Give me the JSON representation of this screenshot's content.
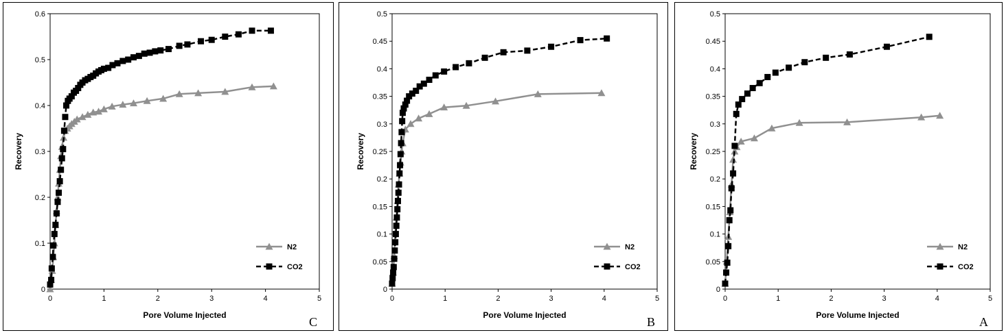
{
  "chart_data": [
    {
      "type": "line",
      "panel_label": "C",
      "xlabel": "Pore Volume Injected",
      "ylabel": "Recovery",
      "xlim": [
        0,
        5
      ],
      "ylim": [
        0,
        0.6
      ],
      "xticks": [
        "0",
        "1",
        "2",
        "3",
        "4",
        "5"
      ],
      "yticks": [
        "0",
        "0.1",
        "0.2",
        "0.3",
        "0.4",
        "0.5",
        "0.6"
      ],
      "ytick_values": [
        0,
        0.1,
        0.2,
        0.3,
        0.4,
        0.5,
        0.6
      ],
      "legend_position": "bottom-right",
      "series": [
        {
          "name": "N2",
          "color": "#909090",
          "marker": "triangle",
          "dash": "solid",
          "x": [
            0,
            0.02,
            0.04,
            0.06,
            0.08,
            0.1,
            0.12,
            0.14,
            0.16,
            0.18,
            0.2,
            0.22,
            0.25,
            0.28,
            0.32,
            0.36,
            0.4,
            0.45,
            0.5,
            0.6,
            0.7,
            0.8,
            0.9,
            1.0,
            1.15,
            1.35,
            1.55,
            1.8,
            2.1,
            2.4,
            2.75,
            3.25,
            3.75,
            4.15
          ],
          "y": [
            0,
            0.02,
            0.04,
            0.07,
            0.1,
            0.14,
            0.17,
            0.2,
            0.23,
            0.26,
            0.29,
            0.31,
            0.33,
            0.345,
            0.35,
            0.355,
            0.36,
            0.365,
            0.37,
            0.375,
            0.38,
            0.385,
            0.387,
            0.392,
            0.398,
            0.402,
            0.405,
            0.41,
            0.415,
            0.425,
            0.427,
            0.43,
            0.44,
            0.442
          ]
        },
        {
          "name": "CO2",
          "color": "#000000",
          "marker": "square",
          "dash": "dashed",
          "x": [
            0,
            0.02,
            0.03,
            0.05,
            0.06,
            0.08,
            0.1,
            0.12,
            0.14,
            0.16,
            0.18,
            0.2,
            0.22,
            0.24,
            0.26,
            0.28,
            0.3,
            0.33,
            0.36,
            0.4,
            0.44,
            0.48,
            0.52,
            0.56,
            0.6,
            0.65,
            0.7,
            0.75,
            0.8,
            0.85,
            0.9,
            0.95,
            1.0,
            1.08,
            1.16,
            1.25,
            1.35,
            1.45,
            1.55,
            1.65,
            1.75,
            1.85,
            1.95,
            2.05,
            2.2,
            2.4,
            2.55,
            2.8,
            3.0,
            3.25,
            3.5,
            3.75,
            4.1
          ],
          "y": [
            0.01,
            0.02,
            0.045,
            0.07,
            0.095,
            0.12,
            0.14,
            0.165,
            0.19,
            0.21,
            0.235,
            0.26,
            0.285,
            0.305,
            0.345,
            0.375,
            0.4,
            0.41,
            0.415,
            0.42,
            0.428,
            0.432,
            0.438,
            0.445,
            0.45,
            0.455,
            0.458,
            0.462,
            0.465,
            0.47,
            0.474,
            0.477,
            0.48,
            0.482,
            0.488,
            0.492,
            0.497,
            0.5,
            0.505,
            0.508,
            0.513,
            0.515,
            0.518,
            0.52,
            0.523,
            0.53,
            0.533,
            0.54,
            0.543,
            0.55,
            0.555,
            0.563,
            0.563
          ]
        }
      ],
      "legend": [
        {
          "label": "N2"
        },
        {
          "label": "CO2"
        }
      ]
    },
    {
      "type": "line",
      "panel_label": "B",
      "xlabel": "Pore Volume Injected",
      "ylabel": "Recovery",
      "xlim": [
        0,
        5
      ],
      "ylim": [
        0,
        0.5
      ],
      "xticks": [
        "0",
        "1",
        "2",
        "3",
        "4",
        "5"
      ],
      "yticks": [
        "0",
        "0.05",
        "0.1",
        "0.15",
        "0.2",
        "0.25",
        "0.3",
        "0.35",
        "0.4",
        "0.45",
        "0.5"
      ],
      "ytick_values": [
        0,
        0.05,
        0.1,
        0.15,
        0.2,
        0.25,
        0.3,
        0.35,
        0.4,
        0.45,
        0.5
      ],
      "legend_position": "bottom-right",
      "series": [
        {
          "name": "N2",
          "color": "#909090",
          "marker": "triangle",
          "dash": "solid",
          "x": [
            0,
            0.02,
            0.04,
            0.06,
            0.08,
            0.1,
            0.12,
            0.14,
            0.16,
            0.18,
            0.2,
            0.25,
            0.35,
            0.5,
            0.7,
            0.98,
            1.4,
            1.95,
            2.75,
            3.95
          ],
          "y": [
            0.01,
            0.03,
            0.06,
            0.1,
            0.13,
            0.16,
            0.19,
            0.21,
            0.23,
            0.25,
            0.265,
            0.29,
            0.3,
            0.31,
            0.318,
            0.33,
            0.333,
            0.341,
            0.354,
            0.356
          ]
        },
        {
          "name": "CO2",
          "color": "#000000",
          "marker": "square",
          "dash": "dashed",
          "x": [
            0,
            0.01,
            0.02,
            0.03,
            0.04,
            0.05,
            0.06,
            0.07,
            0.08,
            0.09,
            0.1,
            0.11,
            0.12,
            0.13,
            0.14,
            0.15,
            0.16,
            0.17,
            0.18,
            0.19,
            0.2,
            0.22,
            0.25,
            0.28,
            0.32,
            0.38,
            0.45,
            0.52,
            0.6,
            0.7,
            0.82,
            0.98,
            1.2,
            1.45,
            1.75,
            2.1,
            2.55,
            3.0,
            3.55,
            4.05
          ],
          "y": [
            0.01,
            0.02,
            0.03,
            0.04,
            0.055,
            0.07,
            0.085,
            0.1,
            0.115,
            0.13,
            0.145,
            0.16,
            0.175,
            0.19,
            0.21,
            0.225,
            0.245,
            0.265,
            0.285,
            0.305,
            0.32,
            0.328,
            0.335,
            0.342,
            0.35,
            0.355,
            0.36,
            0.368,
            0.373,
            0.38,
            0.388,
            0.395,
            0.403,
            0.41,
            0.42,
            0.43,
            0.433,
            0.44,
            0.452,
            0.455
          ]
        }
      ],
      "legend": [
        {
          "label": "N2"
        },
        {
          "label": "CO2"
        }
      ]
    },
    {
      "type": "line",
      "panel_label": "A",
      "xlabel": "Pore Volume Injected",
      "ylabel": "Recovery",
      "xlim": [
        0,
        5
      ],
      "ylim": [
        0,
        0.5
      ],
      "xticks": [
        "0",
        "1",
        "2",
        "3",
        "4",
        "5"
      ],
      "yticks": [
        "0",
        "0.05",
        "0.1",
        "0.15",
        "0.2",
        "0.25",
        "0.3",
        "0.35",
        "0.4",
        "0.45",
        "0.5"
      ],
      "ytick_values": [
        0,
        0.05,
        0.1,
        0.15,
        0.2,
        0.25,
        0.3,
        0.35,
        0.4,
        0.45,
        0.5
      ],
      "legend_position": "bottom-right",
      "series": [
        {
          "name": "N2",
          "color": "#909090",
          "marker": "triangle",
          "dash": "solid",
          "x": [
            0,
            0.03,
            0.06,
            0.09,
            0.12,
            0.15,
            0.18,
            0.22,
            0.3,
            0.55,
            0.88,
            1.4,
            2.3,
            3.7,
            4.05
          ],
          "y": [
            0.01,
            0.05,
            0.095,
            0.14,
            0.19,
            0.235,
            0.25,
            0.258,
            0.268,
            0.274,
            0.292,
            0.302,
            0.303,
            0.312,
            0.315
          ]
        },
        {
          "name": "CO2",
          "color": "#000000",
          "marker": "square",
          "dash": "dashed",
          "x": [
            0,
            0.02,
            0.04,
            0.06,
            0.08,
            0.1,
            0.12,
            0.15,
            0.18,
            0.21,
            0.25,
            0.32,
            0.42,
            0.52,
            0.65,
            0.8,
            0.95,
            1.2,
            1.5,
            1.9,
            2.35,
            3.05,
            3.85
          ],
          "y": [
            0.01,
            0.03,
            0.048,
            0.078,
            0.125,
            0.143,
            0.183,
            0.21,
            0.26,
            0.318,
            0.335,
            0.345,
            0.355,
            0.365,
            0.374,
            0.385,
            0.393,
            0.402,
            0.412,
            0.42,
            0.426,
            0.44,
            0.458
          ]
        }
      ],
      "legend": [
        {
          "label": "N2"
        },
        {
          "label": "CO2"
        }
      ]
    }
  ]
}
